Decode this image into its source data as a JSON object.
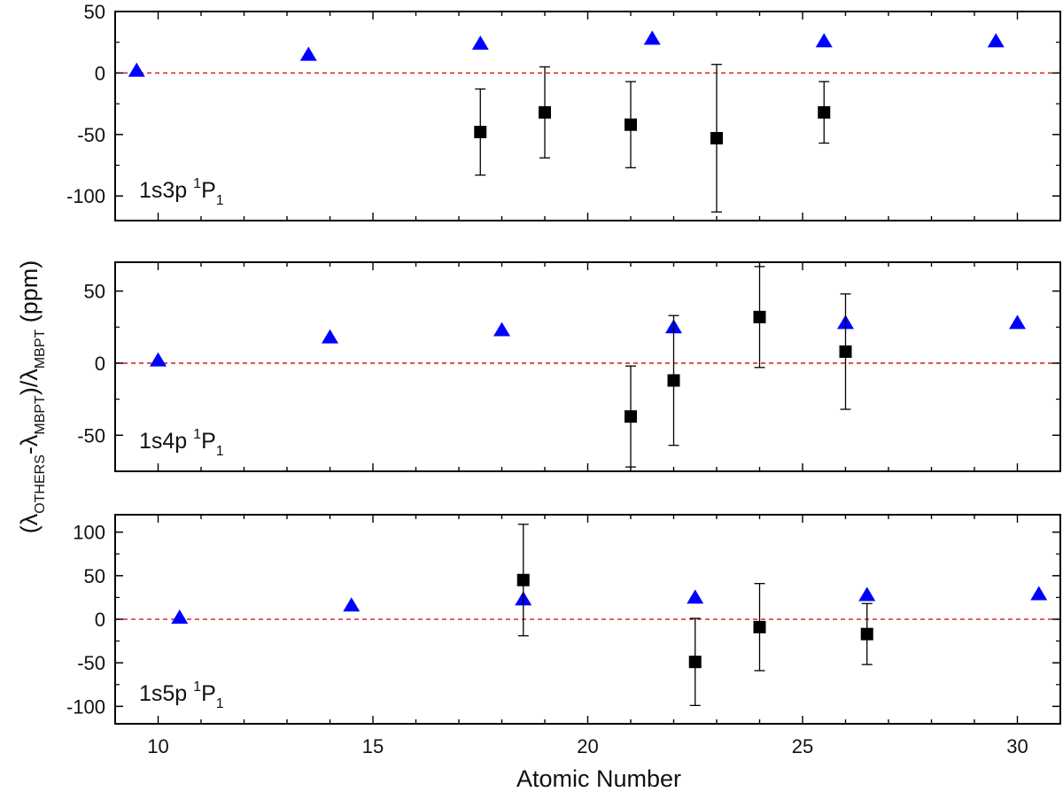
{
  "chart_data": {
    "type": "scatter",
    "xlabel": "Atomic Number",
    "ylabel": {
      "open": "(",
      "lambda": "λ",
      "sub_others": "OTHERS",
      "minus": "-",
      "sub_mbpt": "MBPT",
      "close_div": ")/",
      "tail": " (ppm)"
    },
    "xlim": [
      9,
      31
    ],
    "xticks": [
      10,
      15,
      20,
      25,
      30
    ],
    "xtick_labels": [
      "10",
      "15",
      "20",
      "25",
      "30"
    ],
    "reference_line": 0,
    "colors": {
      "triangle": "#0000ff",
      "square": "#000000",
      "zero_line": "#cc0000"
    },
    "panels": [
      {
        "label_main": "1s3p ",
        "label_sup": "1",
        "label_p": "P",
        "label_sub": "1",
        "ylim": [
          -120,
          50
        ],
        "yticks": [
          50,
          0,
          -50,
          -100
        ],
        "ytick_labels": [
          "50",
          "0",
          "-50",
          "-100"
        ],
        "series": [
          {
            "name": "triangles",
            "x": [
              9.5,
              13.5,
              17.5,
              21.5,
              25.5,
              29.5
            ],
            "y": [
              2,
              15,
              24,
              28,
              26,
              26
            ]
          },
          {
            "name": "squares",
            "x": [
              17.5,
              19,
              21,
              23,
              25.5
            ],
            "y": [
              -48,
              -32,
              -42,
              -53,
              -32
            ],
            "err": [
              35,
              37,
              35,
              60,
              25
            ]
          }
        ]
      },
      {
        "label_main": "1s4p ",
        "label_sup": "1",
        "label_p": "P",
        "label_sub": "1",
        "ylim": [
          -75,
          70
        ],
        "yticks": [
          50,
          0,
          -50
        ],
        "ytick_labels": [
          "50",
          "0",
          "-50"
        ],
        "series": [
          {
            "name": "triangles",
            "x": [
              10,
              14,
              18,
              22,
              26,
              30
            ],
            "y": [
              2,
              18,
              23,
              25,
              28,
              28
            ]
          },
          {
            "name": "squares",
            "x": [
              21,
              22,
              24,
              26
            ],
            "y": [
              -37,
              -12,
              32,
              8
            ],
            "err": [
              35,
              45,
              35,
              40
            ]
          }
        ]
      },
      {
        "label_main": "1s5p ",
        "label_sup": "1",
        "label_p": "P",
        "label_sub": "1",
        "ylim": [
          -120,
          120
        ],
        "yticks": [
          100,
          50,
          0,
          -50,
          -100
        ],
        "ytick_labels": [
          "100",
          "50",
          "0",
          "-50",
          "-100"
        ],
        "series": [
          {
            "name": "triangles",
            "x": [
              10.5,
              14.5,
              18.5,
              22.5,
              26.5,
              30.5
            ],
            "y": [
              2,
              16,
              23,
              25,
              28,
              29
            ]
          },
          {
            "name": "squares",
            "x": [
              18.5,
              22.5,
              24,
              26.5
            ],
            "y": [
              45,
              -49,
              -9,
              -17
            ],
            "err": [
              64,
              50,
              50,
              35
            ]
          }
        ]
      }
    ]
  }
}
